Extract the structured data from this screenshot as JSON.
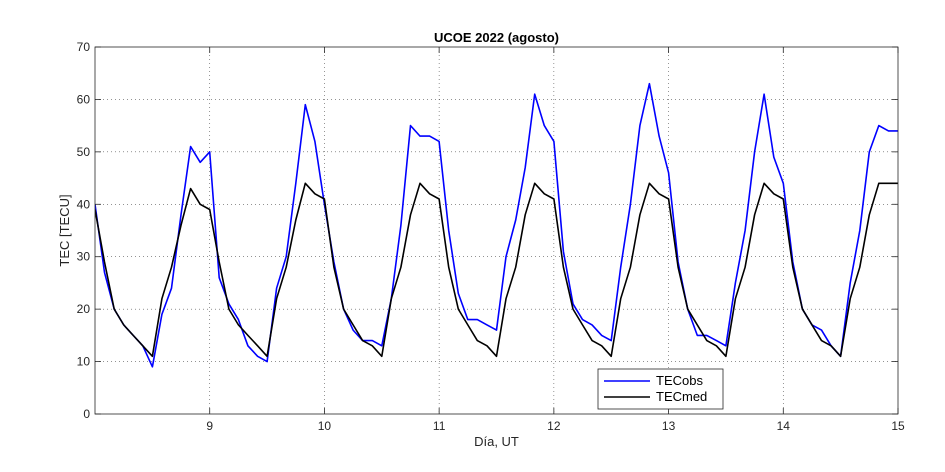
{
  "chart_data": {
    "type": "line",
    "title": "UCOE 2022 (agosto)",
    "xlabel": "Día, UT",
    "ylabel": "TEC [TECU]",
    "xlim": [
      8.0,
      15.0
    ],
    "ylim": [
      0,
      70
    ],
    "x_ticks": [
      9,
      10,
      11,
      12,
      13,
      14,
      15
    ],
    "x_tick_labels": [
      "9",
      "10",
      "11",
      "12",
      "13",
      "14",
      "15"
    ],
    "y_ticks": [
      0,
      10,
      20,
      30,
      40,
      50,
      60,
      70
    ],
    "y_tick_labels": [
      "0",
      "10",
      "20",
      "30",
      "40",
      "50",
      "60",
      "70"
    ],
    "grid": true,
    "legend_position": "bottom-center",
    "series": [
      {
        "name": "TECobs",
        "color": "#0000ff",
        "x": [
          8.0,
          8.083,
          8.167,
          8.25,
          8.333,
          8.417,
          8.5,
          8.583,
          8.667,
          8.75,
          8.833,
          8.917,
          9.0,
          9.083,
          9.167,
          9.25,
          9.333,
          9.417,
          9.5,
          9.583,
          9.667,
          9.75,
          9.833,
          9.917,
          10.0,
          10.083,
          10.167,
          10.25,
          10.333,
          10.417,
          10.5,
          10.583,
          10.667,
          10.75,
          10.833,
          10.917,
          11.0,
          11.083,
          11.167,
          11.25,
          11.333,
          11.417,
          11.5,
          11.583,
          11.667,
          11.75,
          11.833,
          11.917,
          12.0,
          12.083,
          12.167,
          12.25,
          12.333,
          12.417,
          12.5,
          12.583,
          12.667,
          12.75,
          12.833,
          12.917,
          13.0,
          13.083,
          13.167,
          13.25,
          13.333,
          13.417,
          13.5,
          13.583,
          13.667,
          13.75,
          13.833,
          13.917,
          14.0,
          14.083,
          14.167,
          14.25,
          14.333,
          14.417,
          14.5,
          14.583,
          14.667,
          14.75,
          14.833,
          14.917,
          15.0
        ],
        "values": [
          40,
          27,
          20,
          17,
          15,
          13,
          9,
          19,
          24,
          38,
          51,
          48,
          50,
          26,
          21,
          18,
          13,
          11,
          10,
          24,
          30,
          44,
          59,
          52,
          40,
          29,
          20,
          16,
          14,
          14,
          13,
          22,
          36,
          55,
          53,
          53,
          52,
          35,
          23,
          18,
          18,
          17,
          16,
          30,
          37,
          47,
          61,
          55,
          52,
          31,
          21,
          18,
          17,
          15,
          14,
          28,
          40,
          55,
          63,
          53,
          46,
          29,
          20,
          15,
          15,
          14,
          13,
          25,
          35,
          50,
          61,
          49,
          44,
          29,
          20,
          17,
          16,
          13,
          11,
          25,
          35,
          50,
          55,
          54,
          54
        ]
      },
      {
        "name": "TECmed",
        "color": "#000000",
        "x": [
          8.0,
          8.083,
          8.167,
          8.25,
          8.333,
          8.417,
          8.5,
          8.583,
          8.667,
          8.75,
          8.833,
          8.917,
          9.0,
          9.083,
          9.167,
          9.25,
          9.333,
          9.417,
          9.5,
          9.583,
          9.667,
          9.75,
          9.833,
          9.917,
          10.0,
          10.083,
          10.167,
          10.25,
          10.333,
          10.417,
          10.5,
          10.583,
          10.667,
          10.75,
          10.833,
          10.917,
          11.0,
          11.083,
          11.167,
          11.25,
          11.333,
          11.417,
          11.5,
          11.583,
          11.667,
          11.75,
          11.833,
          11.917,
          12.0,
          12.083,
          12.167,
          12.25,
          12.333,
          12.417,
          12.5,
          12.583,
          12.667,
          12.75,
          12.833,
          12.917,
          13.0,
          13.083,
          13.167,
          13.25,
          13.333,
          13.417,
          13.5,
          13.583,
          13.667,
          13.75,
          13.833,
          13.917,
          14.0,
          14.083,
          14.167,
          14.25,
          14.333,
          14.417,
          14.5,
          14.583,
          14.667,
          14.75,
          14.833,
          14.917,
          15.0
        ],
        "values": [
          39,
          29,
          20,
          17,
          15,
          13,
          11,
          22,
          28,
          36,
          43,
          40,
          39,
          29,
          20,
          17,
          15,
          13,
          11,
          22,
          28,
          37,
          44,
          42,
          41,
          28,
          20,
          17,
          14,
          13,
          11,
          22,
          28,
          38,
          44,
          42,
          41,
          28,
          20,
          17,
          14,
          13,
          11,
          22,
          28,
          38,
          44,
          42,
          41,
          28,
          20,
          17,
          14,
          13,
          11,
          22,
          28,
          38,
          44,
          42,
          41,
          28,
          20,
          17,
          14,
          13,
          11,
          22,
          28,
          38,
          44,
          42,
          41,
          28,
          20,
          17,
          14,
          13,
          11,
          22,
          28,
          38,
          44,
          44,
          44
        ]
      }
    ]
  }
}
